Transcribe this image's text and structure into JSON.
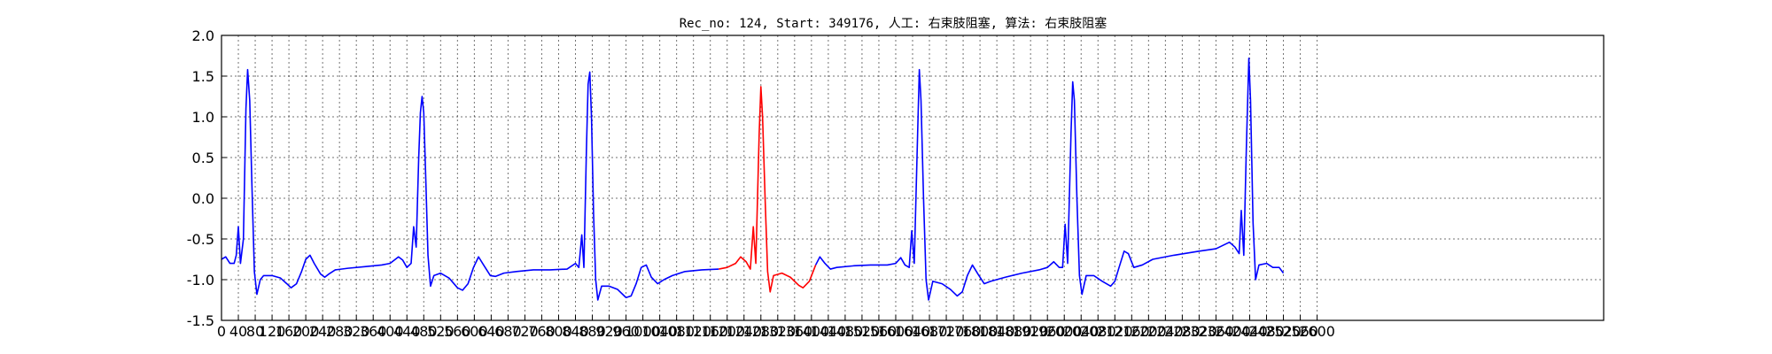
{
  "chart_data": {
    "type": "line",
    "title": "Rec_no: 124, Start: 349176, 人工: 右束肢阻塞, 算法: 右束肢阻塞",
    "xlabel": "",
    "ylabel": "",
    "xlim": [
      0,
      3280
    ],
    "ylim": [
      -1.5,
      2.0
    ],
    "grid": true,
    "yticks": [
      -1.5,
      -1.0,
      -0.5,
      0.0,
      0.5,
      1.0,
      1.5,
      2.0
    ],
    "xticks": [
      0,
      40,
      80,
      120,
      160,
      200,
      240,
      280,
      320,
      360,
      400,
      440,
      480,
      520,
      560,
      600,
      640,
      680,
      720,
      760,
      800,
      840,
      880,
      920,
      960,
      1000,
      1040,
      1080,
      1120,
      1160,
      1200,
      1240,
      1280,
      1320,
      1360,
      1400,
      1440,
      1480,
      1520,
      1560,
      1600,
      1640,
      1680,
      1720,
      1760,
      1800,
      1840,
      1880,
      1920,
      1960,
      2000,
      2040,
      2080,
      2120,
      2160,
      2200,
      2240,
      2280,
      2320,
      2360,
      2400,
      2440,
      2480,
      2520,
      2560,
      2600
    ],
    "xtick_labels": [
      "0",
      "40",
      "80",
      "120",
      "160",
      "200",
      "240",
      "280",
      "320",
      "360",
      "400",
      "440",
      "480",
      "520",
      "560",
      "600",
      "640",
      "680",
      "720",
      "760",
      "800",
      "840",
      "880",
      "920",
      "960",
      "1000",
      "1040",
      "1080",
      "1120",
      "1160",
      "1200",
      "1240",
      "1280",
      "1320",
      "1360",
      "1400",
      "1440",
      "1480",
      "1520",
      "1560",
      "1600",
      "1640",
      "1680",
      "1720",
      "1760",
      "1800",
      "1840",
      "1880",
      "1920",
      "1960",
      "2000",
      "2040",
      "2080",
      "2120",
      "2160",
      "2200",
      "2240",
      "2280",
      "2320",
      "2360",
      "2400",
      "2440",
      "2480",
      "2520",
      "2560",
      "2600"
    ],
    "series": [
      {
        "color": "#0000ff",
        "points": [
          [
            0,
            -0.75
          ],
          [
            10,
            -0.72
          ],
          [
            20,
            -0.8
          ],
          [
            30,
            -0.8
          ],
          [
            35,
            -0.7
          ],
          [
            40,
            -0.35
          ],
          [
            45,
            -0.8
          ],
          [
            52,
            -0.5
          ],
          [
            58,
            1.1
          ],
          [
            62,
            1.58
          ],
          [
            67,
            1.2
          ],
          [
            72,
            0.2
          ],
          [
            78,
            -0.9
          ],
          [
            84,
            -1.18
          ],
          [
            92,
            -1.0
          ],
          [
            100,
            -0.95
          ],
          [
            120,
            -0.95
          ],
          [
            140,
            -0.98
          ],
          [
            155,
            -1.05
          ],
          [
            165,
            -1.1
          ],
          [
            178,
            -1.05
          ],
          [
            190,
            -0.9
          ],
          [
            200,
            -0.75
          ],
          [
            210,
            -0.7
          ],
          [
            220,
            -0.8
          ],
          [
            235,
            -0.93
          ],
          [
            245,
            -0.97
          ],
          [
            255,
            -0.93
          ],
          [
            270,
            -0.88
          ],
          [
            300,
            -0.86
          ],
          [
            340,
            -0.84
          ],
          [
            380,
            -0.82
          ],
          [
            400,
            -0.8
          ],
          [
            420,
            -0.72
          ],
          [
            430,
            -0.76
          ],
          [
            440,
            -0.85
          ],
          [
            450,
            -0.8
          ],
          [
            456,
            -0.35
          ],
          [
            462,
            -0.6
          ],
          [
            468,
            0.5
          ],
          [
            472,
            1.05
          ],
          [
            476,
            1.25
          ],
          [
            480,
            1.05
          ],
          [
            485,
            0.2
          ],
          [
            490,
            -0.7
          ],
          [
            496,
            -1.08
          ],
          [
            504,
            -0.95
          ],
          [
            520,
            -0.92
          ],
          [
            540,
            -0.98
          ],
          [
            560,
            -1.1
          ],
          [
            572,
            -1.13
          ],
          [
            585,
            -1.05
          ],
          [
            598,
            -0.85
          ],
          [
            610,
            -0.72
          ],
          [
            622,
            -0.82
          ],
          [
            638,
            -0.95
          ],
          [
            650,
            -0.96
          ],
          [
            670,
            -0.92
          ],
          [
            700,
            -0.9
          ],
          [
            740,
            -0.88
          ],
          [
            780,
            -0.88
          ],
          [
            820,
            -0.87
          ],
          [
            840,
            -0.8
          ],
          [
            848,
            -0.85
          ],
          [
            855,
            -0.45
          ],
          [
            860,
            -0.85
          ],
          [
            866,
            0.6
          ],
          [
            870,
            1.4
          ],
          [
            874,
            1.55
          ],
          [
            878,
            1.0
          ],
          [
            883,
            -0.2
          ],
          [
            888,
            -1.0
          ],
          [
            893,
            -1.25
          ],
          [
            902,
            -1.08
          ],
          [
            920,
            -1.08
          ],
          [
            940,
            -1.12
          ],
          [
            960,
            -1.22
          ],
          [
            972,
            -1.2
          ],
          [
            984,
            -1.05
          ],
          [
            996,
            -0.85
          ],
          [
            1008,
            -0.82
          ],
          [
            1020,
            -0.97
          ],
          [
            1035,
            -1.05
          ],
          [
            1050,
            -1.0
          ],
          [
            1070,
            -0.95
          ],
          [
            1100,
            -0.9
          ],
          [
            1140,
            -0.88
          ],
          [
            1180,
            -0.87
          ]
        ]
      },
      {
        "color": "#ff0000",
        "points": [
          [
            1180,
            -0.87
          ],
          [
            1200,
            -0.85
          ],
          [
            1220,
            -0.8
          ],
          [
            1232,
            -0.72
          ],
          [
            1245,
            -0.78
          ],
          [
            1255,
            -0.87
          ],
          [
            1262,
            -0.35
          ],
          [
            1268,
            -0.8
          ],
          [
            1276,
            0.8
          ],
          [
            1280,
            1.37
          ],
          [
            1284,
            1.0
          ],
          [
            1290,
            0.0
          ],
          [
            1296,
            -0.9
          ],
          [
            1302,
            -1.15
          ],
          [
            1310,
            -0.95
          ],
          [
            1330,
            -0.92
          ],
          [
            1350,
            -0.97
          ],
          [
            1370,
            -1.07
          ],
          [
            1380,
            -1.1
          ],
          [
            1395,
            -1.02
          ],
          [
            1410,
            -0.82
          ]
        ]
      },
      {
        "color": "#0000ff",
        "points": [
          [
            1410,
            -0.82
          ],
          [
            1420,
            -0.72
          ],
          [
            1432,
            -0.8
          ],
          [
            1445,
            -0.87
          ],
          [
            1460,
            -0.85
          ],
          [
            1500,
            -0.83
          ],
          [
            1540,
            -0.82
          ],
          [
            1580,
            -0.82
          ],
          [
            1600,
            -0.8
          ],
          [
            1612,
            -0.73
          ],
          [
            1622,
            -0.82
          ],
          [
            1632,
            -0.85
          ],
          [
            1638,
            -0.4
          ],
          [
            1644,
            -0.8
          ],
          [
            1652,
            0.8
          ],
          [
            1656,
            1.58
          ],
          [
            1660,
            1.2
          ],
          [
            1666,
            0.0
          ],
          [
            1672,
            -1.0
          ],
          [
            1678,
            -1.25
          ],
          [
            1688,
            -1.02
          ],
          [
            1710,
            -1.05
          ],
          [
            1730,
            -1.12
          ],
          [
            1746,
            -1.2
          ],
          [
            1758,
            -1.15
          ],
          [
            1770,
            -0.95
          ],
          [
            1782,
            -0.82
          ],
          [
            1795,
            -0.93
          ],
          [
            1810,
            -1.05
          ],
          [
            1825,
            -1.02
          ],
          [
            1860,
            -0.97
          ],
          [
            1900,
            -0.92
          ],
          [
            1940,
            -0.88
          ],
          [
            1960,
            -0.85
          ],
          [
            1975,
            -0.78
          ],
          [
            1988,
            -0.85
          ],
          [
            1996,
            -0.85
          ],
          [
            2002,
            -0.32
          ],
          [
            2008,
            -0.8
          ],
          [
            2016,
            0.8
          ],
          [
            2020,
            1.43
          ],
          [
            2024,
            1.2
          ],
          [
            2030,
            0.0
          ],
          [
            2036,
            -0.95
          ],
          [
            2042,
            -1.18
          ],
          [
            2052,
            -0.95
          ],
          [
            2070,
            -0.95
          ],
          [
            2090,
            -1.02
          ],
          [
            2110,
            -1.08
          ],
          [
            2120,
            -1.02
          ],
          [
            2130,
            -0.85
          ],
          [
            2142,
            -0.65
          ],
          [
            2152,
            -0.68
          ],
          [
            2165,
            -0.85
          ],
          [
            2185,
            -0.82
          ],
          [
            2210,
            -0.75
          ],
          [
            2260,
            -0.7
          ],
          [
            2320,
            -0.65
          ],
          [
            2360,
            -0.62
          ],
          [
            2380,
            -0.57
          ],
          [
            2392,
            -0.54
          ],
          [
            2405,
            -0.6
          ],
          [
            2415,
            -0.68
          ],
          [
            2420,
            -0.15
          ],
          [
            2426,
            -0.7
          ],
          [
            2432,
            0.6
          ],
          [
            2438,
            1.72
          ],
          [
            2442,
            1.2
          ],
          [
            2448,
            -0.3
          ],
          [
            2454,
            -1.0
          ],
          [
            2462,
            -0.82
          ],
          [
            2480,
            -0.8
          ],
          [
            2495,
            -0.85
          ],
          [
            2510,
            -0.85
          ],
          [
            2520,
            -0.92
          ]
        ]
      }
    ]
  }
}
